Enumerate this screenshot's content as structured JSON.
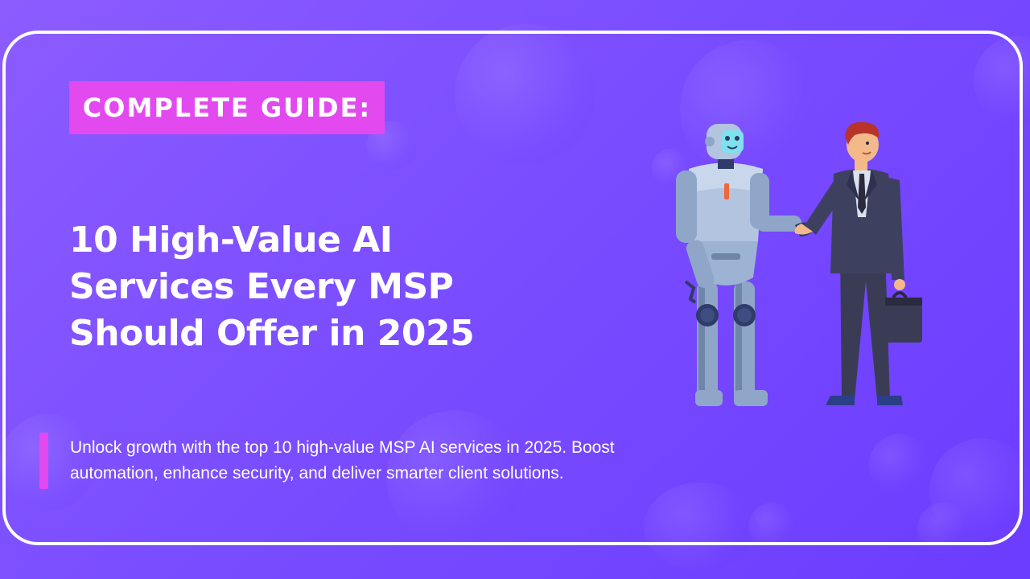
{
  "tag": {
    "label": "COMPLETE GUIDE:"
  },
  "title": {
    "lines": [
      "10 High-Value AI",
      "Services Every MSP",
      "Should Offer in 2025"
    ]
  },
  "description": {
    "lines": [
      "Unlock growth with the top 10 high-value MSP AI services in 2025. Boost",
      "automation, enhance security, and deliver smarter client solutions."
    ]
  },
  "colors": {
    "background": "#7a4dff",
    "accent": "#e24af0",
    "text": "#ffffff",
    "frame": "#ffffff"
  },
  "illustration": {
    "subject": "robot-and-businessman-handshake"
  }
}
